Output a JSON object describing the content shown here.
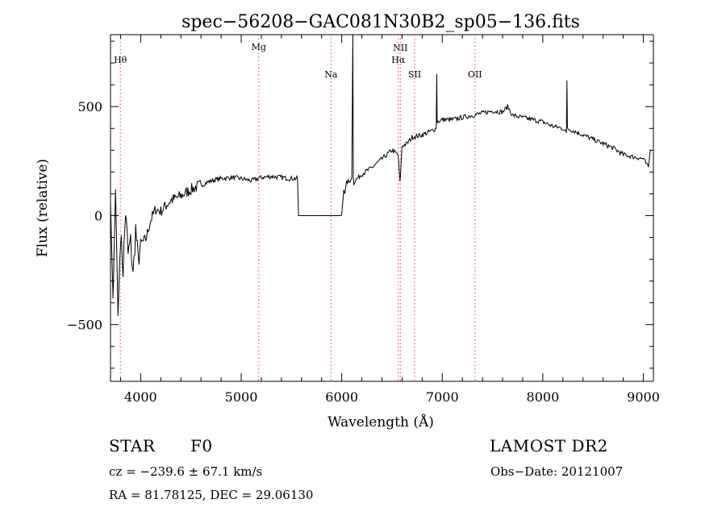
{
  "chart_data": {
    "type": "line",
    "title": "spec−56208−GAC081N30B2_sp05−136.fits",
    "xlabel": "Wavelength (Å)",
    "ylabel": "Flux (relative)",
    "xlim": [
      3700,
      9100
    ],
    "ylim": [
      -760,
      830
    ],
    "xticks": [
      4000,
      5000,
      6000,
      7000,
      8000,
      9000
    ],
    "yticks": [
      -500,
      0,
      500
    ],
    "grid": false,
    "line_color": "#000000",
    "marker_color": "#e0473a",
    "line_markers": [
      {
        "label": "Hθ",
        "wavelength": 3798
      },
      {
        "label": "Mg",
        "wavelength": 5175
      },
      {
        "label": "Na",
        "wavelength": 5893
      },
      {
        "label": "NII",
        "wavelength": 6583
      },
      {
        "label": "Hα",
        "wavelength": 6563
      },
      {
        "label": "SII",
        "wavelength": 6725
      },
      {
        "label": "OII",
        "wavelength": 7325
      }
    ],
    "series": [
      {
        "x": [
          3700,
          3725,
          3750,
          3775,
          3800,
          3825,
          3850,
          3875,
          3900,
          3925,
          3950,
          3975,
          4000,
          4050,
          4100,
          4150,
          4200,
          4300,
          4400,
          4500,
          4600,
          4700,
          4800,
          4900,
          5000,
          5100,
          5200,
          5300,
          5400,
          5500,
          5560,
          5570,
          5600,
          5800,
          6000,
          6020,
          6030,
          6050,
          6080,
          6100,
          6110,
          6115,
          6120,
          6130,
          6200,
          6300,
          6400,
          6500,
          6560,
          6580,
          6600,
          6650,
          6700,
          6800,
          6900,
          6940,
          6945,
          6950,
          7000,
          7100,
          7200,
          7300,
          7400,
          7500,
          7600,
          7650,
          7700,
          7800,
          7900,
          8000,
          8100,
          8200,
          8235,
          8240,
          8245,
          8300,
          8400,
          8500,
          8600,
          8700,
          8800,
          8900,
          9000,
          9050,
          9070
        ],
        "y": [
          60,
          -380,
          120,
          -460,
          -80,
          -250,
          20,
          -180,
          -120,
          -280,
          -60,
          -210,
          -130,
          -110,
          -20,
          30,
          20,
          70,
          90,
          120,
          140,
          160,
          170,
          175,
          170,
          160,
          175,
          180,
          175,
          170,
          170,
          0,
          0,
          0,
          0,
          120,
          110,
          150,
          160,
          170,
          900,
          180,
          150,
          160,
          190,
          220,
          260,
          300,
          280,
          150,
          320,
          330,
          360,
          370,
          390,
          400,
          650,
          430,
          440,
          440,
          450,
          460,
          470,
          480,
          475,
          500,
          460,
          450,
          440,
          430,
          410,
          400,
          380,
          620,
          400,
          390,
          370,
          350,
          330,
          310,
          280,
          270,
          260,
          220,
          300
        ]
      }
    ]
  },
  "info": {
    "class_label": "STAR",
    "subclass": "F0",
    "survey": "LAMOST DR2",
    "redshift_text": "cz = −239.6 ± 67.1 km/s",
    "obs_date_text": "Obs−Date: 20121007",
    "coords_text": "RA =  81.78125, DEC =  29.06130"
  }
}
